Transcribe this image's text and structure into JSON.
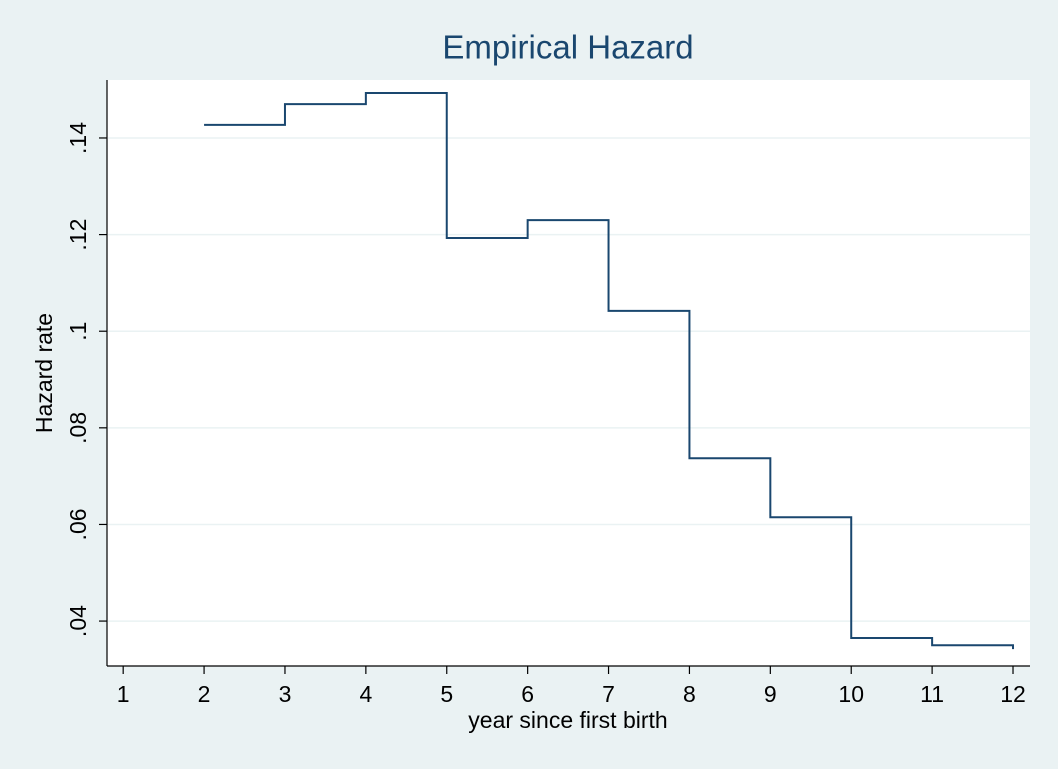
{
  "chart_data": {
    "type": "line",
    "step": "post",
    "title": "Empirical Hazard",
    "xlabel": "year since first birth",
    "ylabel": "Hazard rate",
    "x": [
      2,
      3,
      4,
      5,
      6,
      7,
      8,
      9,
      10,
      11,
      12
    ],
    "values": [
      0.1427,
      0.147,
      0.1493,
      0.1193,
      0.123,
      0.1042,
      0.0737,
      0.0615,
      0.0365,
      0.035,
      0.0342
    ],
    "color": "#1a476f",
    "xlim": [
      0.8,
      12.21
    ],
    "xticks": [
      1,
      2,
      3,
      4,
      5,
      6,
      7,
      8,
      9,
      10,
      11,
      12
    ],
    "ylim": [
      0.0307,
      0.152
    ],
    "yticks": [
      {
        "value": 0.04,
        "label": ".04"
      },
      {
        "value": 0.06,
        "label": ".06"
      },
      {
        "value": 0.08,
        "label": ".08"
      },
      {
        "value": 0.1,
        "label": ".1"
      },
      {
        "value": 0.12,
        "label": ".12"
      },
      {
        "value": 0.14,
        "label": ".14"
      }
    ],
    "grid": true
  }
}
